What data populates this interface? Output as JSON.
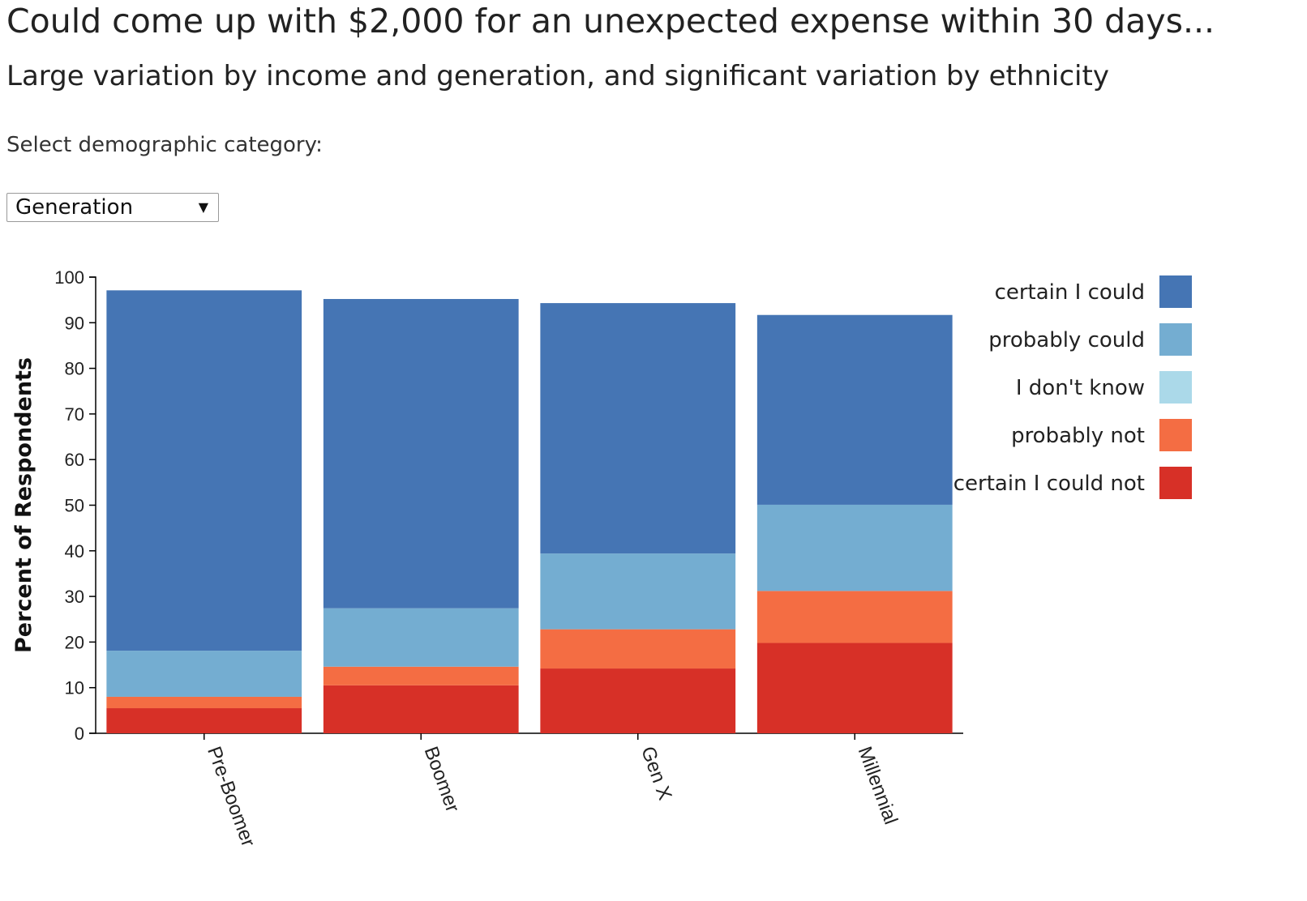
{
  "header": {
    "title": "Could come up with $2,000 for an unexpected expense within 30 days...",
    "subtitle": "Large variation by income and generation, and significant variation by ethnicity"
  },
  "controls": {
    "select_label": "Select demographic category:",
    "selected_value": "Generation",
    "arrow_glyph": "▼"
  },
  "chart_data": {
    "type": "bar",
    "stacked": true,
    "ylabel": "Percent of Respondents",
    "xlabel": "",
    "ylim": [
      0,
      100
    ],
    "yticks": [
      0,
      10,
      20,
      30,
      40,
      50,
      60,
      70,
      80,
      90,
      100
    ],
    "categories": [
      "Pre-Boomer",
      "Boomer",
      "Gen X",
      "Millennial"
    ],
    "series": [
      {
        "name": "certain I could not",
        "color": "#d73027",
        "values": [
          5.5,
          10.5,
          14.2,
          19.8
        ]
      },
      {
        "name": "probably not",
        "color": "#f46d43",
        "values": [
          2.5,
          4.1,
          8.6,
          11.4
        ]
      },
      {
        "name": "I don't know",
        "color": "#abd9e9",
        "values": [
          0,
          0,
          0,
          0
        ]
      },
      {
        "name": "probably could",
        "color": "#74add1",
        "values": [
          10.1,
          12.8,
          16.6,
          18.9
        ]
      },
      {
        "name": "certain I could",
        "color": "#4575b4",
        "values": [
          79,
          67.8,
          54.9,
          41.6
        ]
      }
    ],
    "legend_order": [
      "certain I could",
      "probably could",
      "I don't know",
      "probably not",
      "certain I could not"
    ],
    "legend_position": "right"
  }
}
